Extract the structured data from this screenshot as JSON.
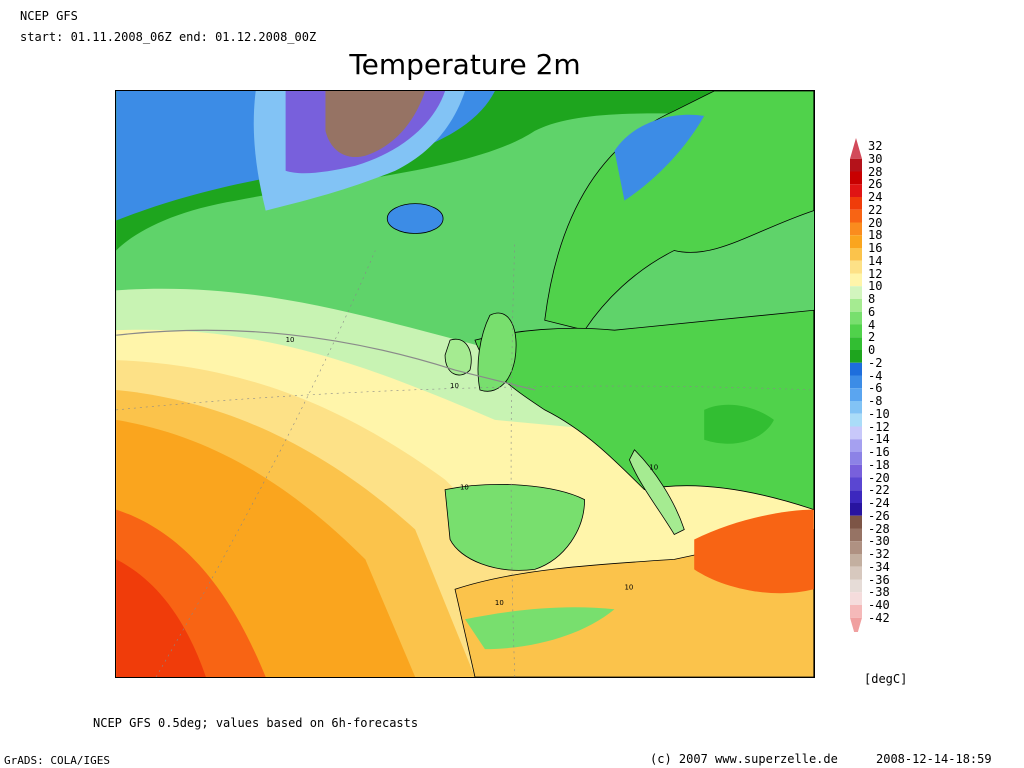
{
  "header": {
    "source": "NCEP GFS",
    "period": "start: 01.11.2008_06Z end: 01.12.2008_00Z"
  },
  "title": "Temperature 2m",
  "map": {
    "region": "Europe and North Atlantic",
    "contour_label": "10"
  },
  "colorbar": {
    "unit": "[degC]",
    "levels": [
      {
        "label": "32",
        "color": "#d24a5a"
      },
      {
        "label": "30",
        "color": "#b4121a"
      },
      {
        "label": "28",
        "color": "#c80000"
      },
      {
        "label": "26",
        "color": "#e01414"
      },
      {
        "label": "24",
        "color": "#f03c0a"
      },
      {
        "label": "22",
        "color": "#f86414"
      },
      {
        "label": "20",
        "color": "#fa8c1e"
      },
      {
        "label": "18",
        "color": "#faa51e"
      },
      {
        "label": "16",
        "color": "#fbc34b"
      },
      {
        "label": "14",
        "color": "#fde187"
      },
      {
        "label": "12",
        "color": "#fff5aa"
      },
      {
        "label": "10",
        "color": "#d2f5be"
      },
      {
        "label": "8",
        "color": "#a5eb91"
      },
      {
        "label": "6",
        "color": "#78df6e"
      },
      {
        "label": "4",
        "color": "#50d24b"
      },
      {
        "label": "2",
        "color": "#32be32"
      },
      {
        "label": "0",
        "color": "#1ea51e"
      },
      {
        "label": "-2",
        "color": "#1e6edc"
      },
      {
        "label": "-4",
        "color": "#3c8ce6"
      },
      {
        "label": "-6",
        "color": "#5aa5f0"
      },
      {
        "label": "-8",
        "color": "#82c3f5"
      },
      {
        "label": "-10",
        "color": "#aadcf8"
      },
      {
        "label": "-12",
        "color": "#c8c8fa"
      },
      {
        "label": "-14",
        "color": "#a5a0f0"
      },
      {
        "label": "-16",
        "color": "#8c82e6"
      },
      {
        "label": "-18",
        "color": "#7860dc"
      },
      {
        "label": "-20",
        "color": "#5a46d2"
      },
      {
        "label": "-22",
        "color": "#3c28be"
      },
      {
        "label": "-24",
        "color": "#2814a0"
      },
      {
        "label": "-26",
        "color": "#7d5546"
      },
      {
        "label": "-28",
        "color": "#967364"
      },
      {
        "label": "-30",
        "color": "#af9182"
      },
      {
        "label": "-32",
        "color": "#c3afa0"
      },
      {
        "label": "-34",
        "color": "#d7c8be"
      },
      {
        "label": "-36",
        "color": "#e6dcd7"
      },
      {
        "label": "-38",
        "color": "#f5dcdc"
      },
      {
        "label": "-40",
        "color": "#f5b9b9"
      },
      {
        "label": "-42",
        "color": "#f0a0a0"
      }
    ]
  },
  "footer": {
    "note": "NCEP GFS 0.5deg; values based on 6h-forecasts",
    "grads": "GrADS: COLA/IGES",
    "copyright": "(c) 2007 www.superzelle.de",
    "timestamp": "2008-12-14-18:59"
  }
}
